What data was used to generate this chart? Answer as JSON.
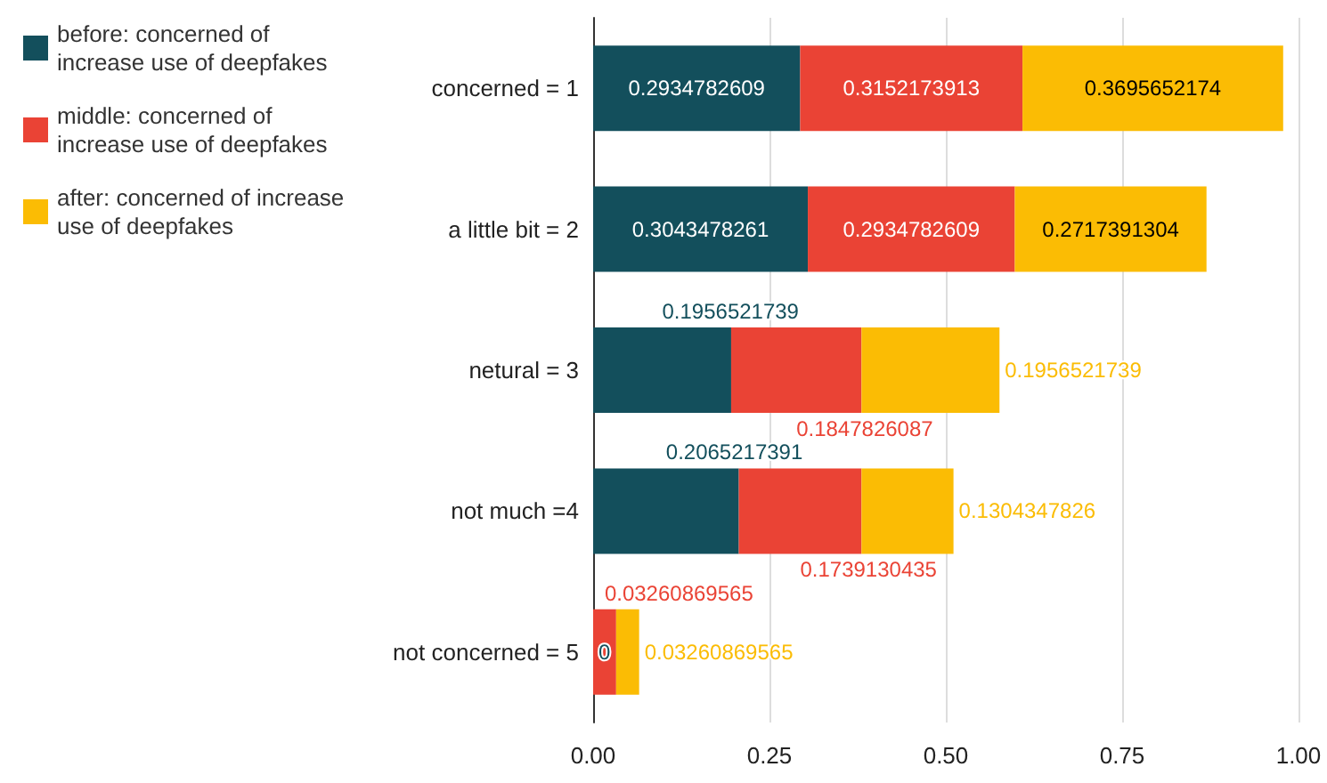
{
  "chart_data": {
    "type": "bar",
    "orientation": "horizontal",
    "stacked": true,
    "categories": [
      "concerned = 1",
      "a little bit = 2",
      "netural = 3",
      "not much =4",
      "not concerned = 5"
    ],
    "series": [
      {
        "name": "before: concerned of increase use of deepfakes",
        "color": "#134f5c",
        "values": [
          0.2934782609,
          0.3043478261,
          0.1956521739,
          0.2065217391,
          0
        ]
      },
      {
        "name": "middle: concerned of increase use of deepfakes",
        "color": "#ea4335",
        "values": [
          0.3152173913,
          0.2934782609,
          0.1847826087,
          0.1739130435,
          0.03260869565
        ]
      },
      {
        "name": "after: concerned of increase use of deepfakes",
        "color": "#fbbc04",
        "values": [
          0.3695652174,
          0.2717391304,
          0.1956521739,
          0.1304347826,
          0.03260869565
        ]
      }
    ],
    "xlim": [
      0,
      1
    ],
    "xticks": [
      {
        "value": 0,
        "label": "0.00"
      },
      {
        "value": 0.25,
        "label": "0.25"
      },
      {
        "value": 0.5,
        "label": "0.50"
      },
      {
        "value": 0.75,
        "label": "0.75"
      },
      {
        "value": 1,
        "label": "1.00"
      }
    ],
    "grid": "x",
    "legend": "left",
    "data_labels": true
  }
}
